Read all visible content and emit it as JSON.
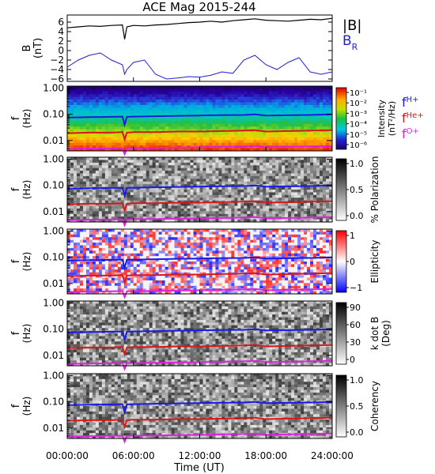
{
  "title": "ACE Mag 2015-244",
  "colors": {
    "B_total": "#000000",
    "B_R": "#1f1fd6",
    "f_H": "#1a1ae6",
    "f_He": "#d81818",
    "f_O": "#e020e0"
  },
  "chart_data": [
    {
      "type": "line",
      "panel": "magnetic-field",
      "ylabel": "B\n(nT)",
      "ylim": [
        -6.5,
        7.5
      ],
      "yticks": [
        "6",
        "4",
        "2",
        "0",
        "−2",
        "−4",
        "−6"
      ],
      "ytick_values": [
        6,
        4,
        2,
        0,
        -2,
        -4,
        -6
      ],
      "legend": [
        "|B|",
        "B_R"
      ],
      "series": [
        {
          "name": "|B|",
          "x": [
            0,
            1,
            2,
            3,
            4,
            5,
            5.2,
            5.4,
            6,
            7,
            8,
            9,
            10,
            11,
            12,
            13,
            14,
            15,
            16,
            17,
            18,
            19,
            20,
            21,
            22,
            23,
            24
          ],
          "values": [
            4.8,
            5.0,
            5.2,
            5.1,
            5.3,
            5.4,
            2.4,
            5.0,
            5.3,
            5.2,
            5.4,
            5.5,
            5.7,
            5.9,
            6.0,
            6.2,
            6.0,
            6.3,
            6.5,
            6.7,
            6.4,
            6.3,
            6.2,
            6.4,
            6.6,
            6.5,
            6.8
          ]
        },
        {
          "name": "B_R",
          "x": [
            0,
            1,
            2,
            3,
            4,
            5,
            5.2,
            5.4,
            6,
            7,
            8,
            9,
            10,
            11,
            12,
            13,
            14,
            15,
            16,
            17,
            18,
            19,
            20,
            21,
            22,
            23,
            24
          ],
          "values": [
            -3.5,
            -2.0,
            -1.0,
            -0.5,
            -2.0,
            -3.0,
            -5.0,
            -4.0,
            -2.5,
            -2.0,
            -5.0,
            -6.0,
            -5.8,
            -5.5,
            -5.6,
            -5.2,
            -4.5,
            -4.8,
            -2.0,
            -1.0,
            -3.0,
            -4.0,
            -2.5,
            -1.5,
            -4.5,
            -5.0,
            -4.5
          ]
        }
      ]
    },
    {
      "type": "heatmap",
      "panel": "intensity",
      "ylabel": "f\n(Hz)",
      "yticks": [
        "1.00",
        "0.10",
        "0.01"
      ],
      "ylim": [
        0.004,
        1.2
      ],
      "colorbar_label": "Intensity\n(nT²/Hz)",
      "colorbar_ticks": [
        "10⁻¹",
        "10⁻²",
        "10⁻³",
        "10⁻⁴",
        "10⁻⁵",
        "10⁻⁶"
      ],
      "legend": [
        "f_H+",
        "f_He+",
        "f_O+"
      ]
    },
    {
      "type": "heatmap",
      "panel": "polarization",
      "ylabel": "f\n(Hz)",
      "yticks": [
        "1.00",
        "0.10",
        "0.01"
      ],
      "colorbar_label": "% Polarization",
      "colorbar_ticks": [
        "1.0",
        "0.5",
        "0.0"
      ]
    },
    {
      "type": "heatmap",
      "panel": "ellipticity",
      "ylabel": "f\n(Hz)",
      "yticks": [
        "1.00",
        "0.10",
        "0.01"
      ],
      "colorbar_label": "Ellipticity",
      "colorbar_ticks": [
        "1",
        "0",
        "−1"
      ]
    },
    {
      "type": "heatmap",
      "panel": "k-dot-b",
      "ylabel": "f\n(Hz)",
      "yticks": [
        "1.00",
        "0.10",
        "0.01"
      ],
      "colorbar_label": "k dot B\n(Deg)",
      "colorbar_ticks": [
        "90",
        "60",
        "30",
        "0"
      ]
    },
    {
      "type": "heatmap",
      "panel": "coherency",
      "ylabel": "f\n(Hz)",
      "yticks": [
        "1.00",
        "0.10",
        "0.01"
      ],
      "colorbar_label": "Coherency",
      "colorbar_ticks": [
        "1.0",
        "0.5",
        "0.0"
      ]
    }
  ],
  "gyro_lines": {
    "x": [
      0,
      2,
      4,
      5,
      5.2,
      5.4,
      6,
      8,
      10,
      12,
      14,
      16,
      17,
      18,
      20,
      22,
      24
    ],
    "f_H": [
      0.075,
      0.078,
      0.08,
      0.082,
      0.04,
      0.08,
      0.082,
      0.085,
      0.088,
      0.09,
      0.093,
      0.095,
      0.1,
      0.09,
      0.092,
      0.095,
      0.1
    ],
    "f_He": [
      0.019,
      0.02,
      0.02,
      0.021,
      0.011,
      0.02,
      0.021,
      0.021,
      0.022,
      0.022,
      0.023,
      0.024,
      0.025,
      0.022,
      0.023,
      0.024,
      0.025
    ],
    "f_O": [
      0.0047,
      0.0049,
      0.005,
      0.0051,
      0.003,
      0.005,
      0.0051,
      0.0052,
      0.0054,
      0.0055,
      0.0057,
      0.0059,
      0.0062,
      0.0055,
      0.0057,
      0.0059,
      0.0062
    ]
  },
  "legend_labels": {
    "B_total": "|B|",
    "B_R_main": "B",
    "B_R_sub": "R",
    "f_H_main": "f",
    "f_H_sup": "H+",
    "f_He_main": "f",
    "f_He_sup": "He+",
    "f_O_main": "f",
    "f_O_sup": "O+"
  },
  "x_axis": {
    "label": "Time (UT)",
    "ticks": [
      "00:00:00",
      "06:00:00",
      "12:00:00",
      "18:00:00",
      "24:00:00"
    ],
    "tick_values": [
      0,
      6,
      12,
      18,
      24
    ],
    "range": [
      0,
      24
    ]
  },
  "panel_labels": {
    "mag_ylabel_1": "B",
    "mag_ylabel_2": "(nT)",
    "f_ylabel_1": "f",
    "f_ylabel_2": "(Hz)",
    "intensity_cb_1": "Intensity",
    "intensity_cb_2": "(nT²/Hz)",
    "polarization_cb": "% Polarization",
    "ellipticity_cb": "Ellipticity",
    "kdotb_cb_1": "k dot B",
    "kdotb_cb_2": "(Deg)",
    "coherency_cb": "Coherency"
  }
}
